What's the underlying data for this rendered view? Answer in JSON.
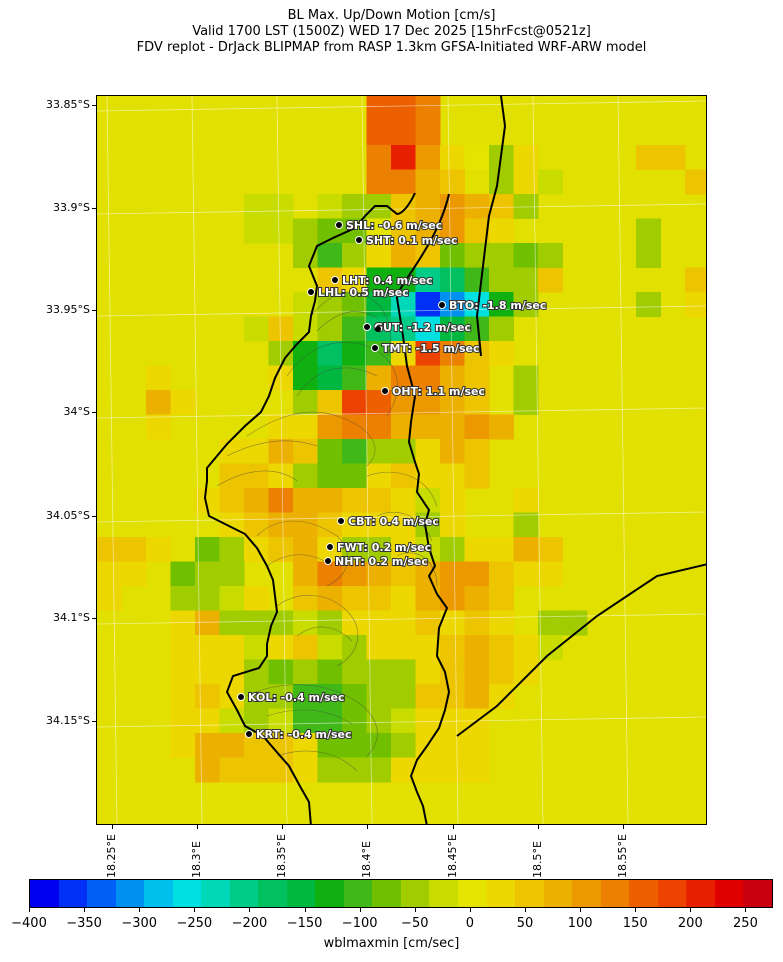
{
  "title": {
    "line1": "BL Max. Up/Down Motion [cm/s]",
    "line2": "Valid 1700 LST (1500Z) WED 17 Dec 2025 [15hrFcst@0521z]",
    "line3": "FDV replot - DrJack BLIPMAP from RASP 1.3km GFSA-Initiated WRF-ARW model"
  },
  "axes": {
    "lat_ticks": [
      "33.85°S",
      "33.9°S",
      "33.95°S",
      "34°S",
      "34.05°S",
      "34.1°S",
      "34.15°S"
    ],
    "lon_ticks": [
      "18.25°E",
      "18.3°E",
      "18.35°E",
      "18.4°E",
      "18.45°E",
      "18.5°E",
      "18.55°E"
    ]
  },
  "stations": [
    {
      "name": "SHL",
      "label": "SHL: -0.6 m/sec",
      "value": -0.6
    },
    {
      "name": "SHT",
      "label": "SHT: 0.1 m/sec",
      "value": 0.1
    },
    {
      "name": "LHT",
      "label": "LHT: 0.4 m/sec",
      "value": 0.4
    },
    {
      "name": "LHL",
      "label": "LHL: 0.5 m/sec",
      "value": 0.5
    },
    {
      "name": "BTO",
      "label": "BTO: -1.8 m/sec",
      "value": -1.8
    },
    {
      "name": "GUT",
      "label": "GUT: -1.2 m/sec",
      "value": -1.2
    },
    {
      "name": "TMT",
      "label": "TMT: -1.5 m/sec",
      "value": -1.5
    },
    {
      "name": "OHT",
      "label": "OHT: 1.1 m/sec",
      "value": 1.1
    },
    {
      "name": "CBT",
      "label": "CBT: 0.4 m/sec",
      "value": 0.4
    },
    {
      "name": "FWT",
      "label": "FWT: 0.2 m/sec",
      "value": 0.2
    },
    {
      "name": "NHT",
      "label": "NHT: 0.2 m/sec",
      "value": 0.2
    },
    {
      "name": "KOL",
      "label": "KOL: -0.4 m/sec",
      "value": -0.4
    },
    {
      "name": "KRT",
      "label": "KRT: -0.4 m/sec",
      "value": -0.4
    }
  ],
  "colorbar": {
    "label": "wblmaxmin [cm/sec]",
    "min": -400,
    "max": 275,
    "ticks": [
      "−400",
      "−350",
      "−300",
      "−250",
      "−200",
      "−150",
      "−100",
      "−50",
      "0",
      "50",
      "100",
      "150",
      "200",
      "250"
    ],
    "colors": [
      "#0000f0",
      "#0030f5",
      "#0060f5",
      "#0090f0",
      "#00c0ee",
      "#00e0e0",
      "#00d8b8",
      "#00cc88",
      "#00c060",
      "#00b840",
      "#10b010",
      "#40b818",
      "#70c000",
      "#a0cc00",
      "#c8dc00",
      "#e4e400",
      "#ecd800",
      "#ecc400",
      "#ecb000",
      "#ec9800",
      "#ec8000",
      "#ec6000",
      "#ec4400",
      "#e82000",
      "#e00000",
      "#c80010"
    ]
  }
}
